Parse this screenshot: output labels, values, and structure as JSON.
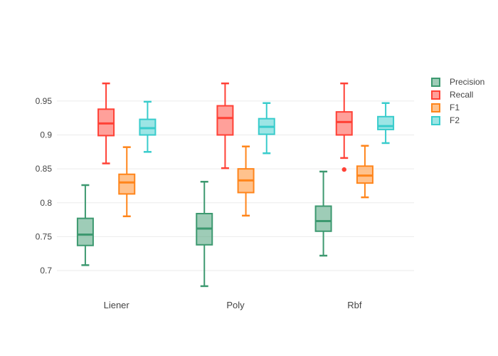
{
  "colors": {
    "background": "#ffffff",
    "tick_label": "#444444",
    "grid": "#EBEBEB"
  },
  "legend": {
    "items": [
      "Precision",
      "Recall",
      "F1",
      "F2"
    ]
  },
  "chart_data": {
    "type": "box",
    "title": "",
    "xlabel": "",
    "ylabel": "",
    "grid": true,
    "legend_position": "right",
    "categories": [
      "Liener",
      "Poly",
      "Rbf"
    ],
    "yaxis": {
      "ticks": [
        0.7,
        0.75,
        0.8,
        0.85,
        0.9,
        0.95
      ],
      "tick_labels": [
        "0.7",
        "0.75",
        "0.8",
        "0.85",
        "0.9",
        "0.95"
      ],
      "range": [
        0.658,
        0.994
      ],
      "gridcolor": "#EBEBEB"
    },
    "series": [
      {
        "name": "Precision",
        "line_color": "#3D9970",
        "fill_color": "rgba(61,153,112,0.5)",
        "boxes": [
          {
            "low": 0.708,
            "q1": 0.737,
            "med": 0.753,
            "q3": 0.777,
            "high": 0.826,
            "outliers": []
          },
          {
            "low": 0.677,
            "q1": 0.738,
            "med": 0.762,
            "q3": 0.784,
            "high": 0.831,
            "outliers": []
          },
          {
            "low": 0.722,
            "q1": 0.758,
            "med": 0.773,
            "q3": 0.795,
            "high": 0.846,
            "outliers": []
          }
        ]
      },
      {
        "name": "Recall",
        "line_color": "#FF4136",
        "fill_color": "rgba(255,65,54,0.5)",
        "boxes": [
          {
            "low": 0.858,
            "q1": 0.899,
            "med": 0.917,
            "q3": 0.938,
            "high": 0.976,
            "outliers": []
          },
          {
            "low": 0.851,
            "q1": 0.9,
            "med": 0.925,
            "q3": 0.943,
            "high": 0.976,
            "outliers": []
          },
          {
            "low": 0.866,
            "q1": 0.9,
            "med": 0.919,
            "q3": 0.934,
            "high": 0.976,
            "outliers": [
              0.849
            ]
          }
        ]
      },
      {
        "name": "F1",
        "line_color": "#FF851B",
        "fill_color": "rgba(255,133,27,0.5)",
        "boxes": [
          {
            "low": 0.78,
            "q1": 0.813,
            "med": 0.83,
            "q3": 0.842,
            "high": 0.882,
            "outliers": []
          },
          {
            "low": 0.781,
            "q1": 0.815,
            "med": 0.833,
            "q3": 0.85,
            "high": 0.883,
            "outliers": []
          },
          {
            "low": 0.808,
            "q1": 0.829,
            "med": 0.84,
            "q3": 0.854,
            "high": 0.884,
            "outliers": []
          }
        ]
      },
      {
        "name": "F2",
        "line_color": "#39CCCC",
        "fill_color": "rgba(57,204,204,0.5)",
        "boxes": [
          {
            "low": 0.875,
            "q1": 0.9,
            "med": 0.91,
            "q3": 0.923,
            "high": 0.949,
            "outliers": []
          },
          {
            "low": 0.873,
            "q1": 0.901,
            "med": 0.912,
            "q3": 0.924,
            "high": 0.947,
            "outliers": []
          },
          {
            "low": 0.888,
            "q1": 0.908,
            "med": 0.913,
            "q3": 0.927,
            "high": 0.947,
            "outliers": []
          }
        ]
      }
    ]
  }
}
